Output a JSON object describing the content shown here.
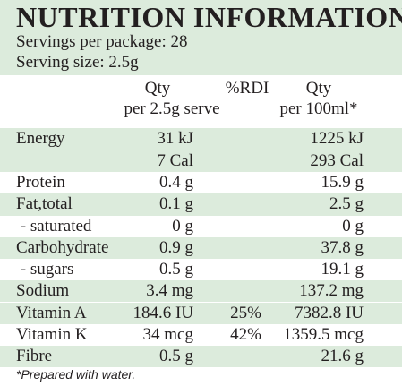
{
  "title": "NUTRITION INFORMATION",
  "servings_per_package": "Servings per package: 28",
  "serving_size": "Serving size: 2.5g",
  "headers": {
    "qty_line1": "Qty",
    "qty_line2": "per 2.5g serve",
    "rdi": "%RDI",
    "per100_line1": "Qty",
    "per100_line2": "per 100ml*"
  },
  "rows": [
    {
      "label": "Energy",
      "qty": "31 kJ",
      "rdi": "",
      "per100": "1225 kJ"
    },
    {
      "label": "",
      "qty": "7 Cal",
      "rdi": "",
      "per100": "293 Cal"
    },
    {
      "label": "Protein",
      "qty": "0.4 g",
      "rdi": "",
      "per100": "15.9 g"
    },
    {
      "label": "Fat,total",
      "qty": "0.1 g",
      "rdi": "",
      "per100": "2.5 g"
    },
    {
      "label": " - saturated",
      "qty": "0 g",
      "rdi": "",
      "per100": "0 g"
    },
    {
      "label": "Carbohydrate",
      "qty": "0.9 g",
      "rdi": "",
      "per100": "37.8 g"
    },
    {
      "label": " - sugars",
      "qty": "0.5 g",
      "rdi": "",
      "per100": "19.1 g"
    },
    {
      "label": "Sodium",
      "qty": "3.4 mg",
      "rdi": "",
      "per100": "137.2 mg"
    },
    {
      "label": "Vitamin A",
      "qty": "184.6 IU",
      "rdi": "25%",
      "per100": "7382.8 IU"
    },
    {
      "label": "Vitamin K",
      "qty": "34 mcg",
      "rdi": "42%",
      "per100": "1359.5 mcg"
    },
    {
      "label": "Fibre",
      "qty": "0.5 g",
      "rdi": "",
      "per100": "21.6 g"
    }
  ],
  "footnote": "*Prepared with water.",
  "colors": {
    "band": "#dcebdc",
    "text": "#231f20"
  }
}
